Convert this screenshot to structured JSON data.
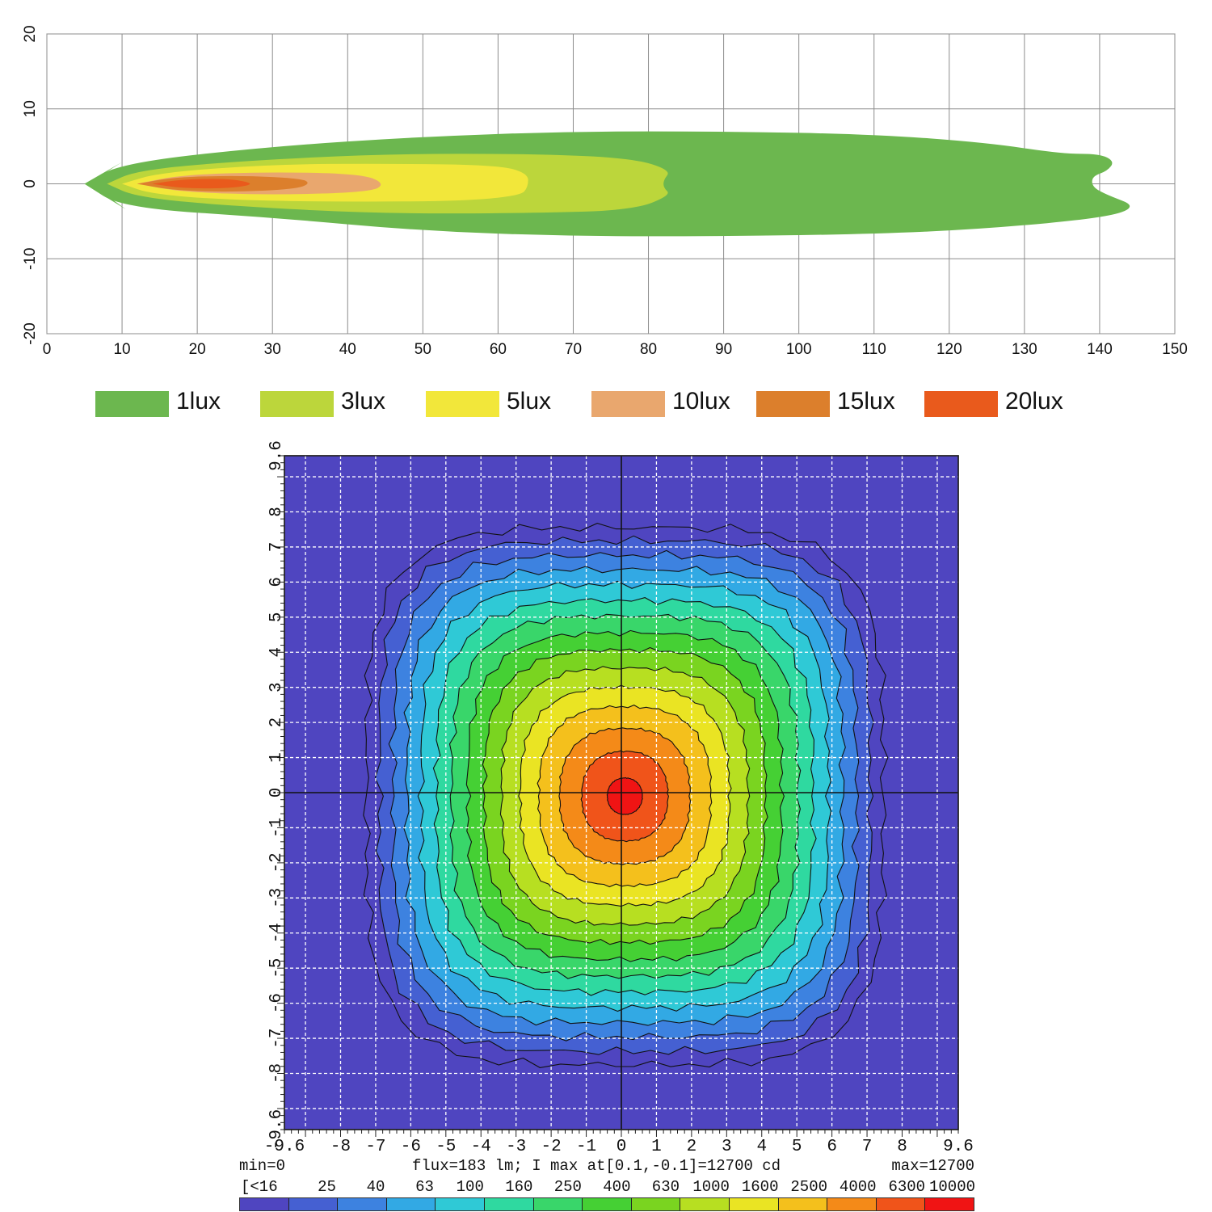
{
  "chart_data": [
    {
      "type": "area",
      "description_kind": "isolux contour plot",
      "title": "",
      "xlabel": "",
      "ylabel": "",
      "xlim": [
        0,
        150
      ],
      "ylim": [
        -20,
        20
      ],
      "xticks": [
        0,
        10,
        20,
        30,
        40,
        50,
        60,
        70,
        80,
        90,
        100,
        110,
        120,
        130,
        140,
        150
      ],
      "yticks": [
        20,
        10,
        0,
        -10,
        -20
      ],
      "grid": true,
      "legend_position": "bottom",
      "series": [
        {
          "name": "1lux",
          "color": "#6cb74f",
          "points": [
            [
              5,
              0
            ],
            [
              10,
              2.8
            ],
            [
              30,
              5
            ],
            [
              50,
              6.3
            ],
            [
              70,
              7
            ],
            [
              90,
              7
            ],
            [
              110,
              6.6
            ],
            [
              125,
              5.5
            ],
            [
              135,
              4
            ],
            [
              140,
              4
            ],
            [
              142,
              3
            ],
            [
              141,
              1.7
            ],
            [
              139,
              1
            ],
            [
              139,
              -0.4
            ],
            [
              141,
              -1.5
            ],
            [
              145,
              -3
            ],
            [
              141,
              -4.5
            ],
            [
              125,
              -6
            ],
            [
              110,
              -6.7
            ],
            [
              90,
              -7
            ],
            [
              70,
              -7
            ],
            [
              50,
              -6.3
            ],
            [
              30,
              -4.5
            ],
            [
              10,
              -3.2
            ],
            [
              5,
              0
            ]
          ]
        },
        {
          "name": "3lux",
          "color": "#bcd63b",
          "points": [
            [
              8,
              0
            ],
            [
              12,
              1.8
            ],
            [
              25,
              3
            ],
            [
              45,
              4
            ],
            [
              65,
              4
            ],
            [
              78,
              3.4
            ],
            [
              83,
              1.8
            ],
            [
              82,
              0.5
            ],
            [
              82,
              -0.5
            ],
            [
              83,
              -1.5
            ],
            [
              78,
              -3.5
            ],
            [
              65,
              -3.9
            ],
            [
              45,
              -4
            ],
            [
              25,
              -3
            ],
            [
              12,
              -1.8
            ],
            [
              8,
              0
            ]
          ]
        },
        {
          "name": "5lux",
          "color": "#f2e73a",
          "points": [
            [
              10,
              0
            ],
            [
              15,
              1.5
            ],
            [
              30,
              2.6
            ],
            [
              45,
              2.7
            ],
            [
              60,
              2.5
            ],
            [
              64,
              1.4
            ],
            [
              64,
              -0.4
            ],
            [
              63,
              -1.6
            ],
            [
              55,
              -2.3
            ],
            [
              40,
              -2.4
            ],
            [
              25,
              -2.2
            ],
            [
              14,
              -1.4
            ],
            [
              10,
              0
            ]
          ]
        },
        {
          "name": "10lux",
          "color": "#e9a76e",
          "points": [
            [
              12,
              0
            ],
            [
              18,
              1.2
            ],
            [
              30,
              1.6
            ],
            [
              42,
              1.3
            ],
            [
              45,
              0
            ],
            [
              43,
              -1.1
            ],
            [
              30,
              -1.5
            ],
            [
              18,
              -1.1
            ],
            [
              12,
              0
            ]
          ]
        },
        {
          "name": "15lux",
          "color": "#dc7f2c",
          "points": [
            [
              12,
              0
            ],
            [
              17,
              0.9
            ],
            [
              26,
              1.1
            ],
            [
              34,
              0.7
            ],
            [
              35,
              0
            ],
            [
              33,
              -0.7
            ],
            [
              25,
              -1.1
            ],
            [
              17,
              -0.9
            ],
            [
              12,
              0
            ]
          ]
        },
        {
          "name": "20lux",
          "color": "#e95a1c",
          "points": [
            [
              14,
              0
            ],
            [
              18,
              0.6
            ],
            [
              24,
              0.7
            ],
            [
              27,
              0.2
            ],
            [
              27,
              -0.2
            ],
            [
              24,
              -0.6
            ],
            [
              18,
              -0.6
            ],
            [
              14,
              0
            ]
          ]
        }
      ]
    },
    {
      "type": "heatmap",
      "title": "",
      "xlim": [
        -9.6,
        9.6
      ],
      "ylim": [
        -9.6,
        9.6
      ],
      "xticks": [
        "-9.6",
        "-8",
        "-7",
        "-6",
        "-5",
        "-4",
        "-3",
        "-2",
        "-1",
        "0",
        "1",
        "2",
        "3",
        "4",
        "5",
        "6",
        "7",
        "8",
        "9.6"
      ],
      "yticks": [
        "9.6",
        "8",
        "7",
        "6",
        "5",
        "4",
        "3",
        "2",
        "1",
        "0",
        "-1",
        "-2",
        "-3",
        "-4",
        "-5",
        "-6",
        "-7",
        "-8",
        "-9.6"
      ],
      "grid": true,
      "crosshair_at": [
        0,
        0
      ],
      "peak_location": [
        0.1,
        -0.1
      ],
      "peak_value": 12700,
      "levels": [
        16,
        25,
        40,
        63,
        100,
        160,
        250,
        400,
        630,
        1000,
        1600,
        2500,
        4000,
        6300,
        10000
      ],
      "min_text": "min=0",
      "flux_text": "flux=183 lm; I max at[0.1,-0.1]=12700 cd",
      "max_text": "max=12700",
      "scale_labels": [
        "[<16",
        "25",
        "40",
        "63",
        "100",
        "160",
        "250",
        "400",
        "630",
        "1000",
        "1600",
        "2500",
        "4000",
        "6300",
        "10000"
      ],
      "scale_colors": [
        "#4f45c0",
        "#4560d2",
        "#3d82e0",
        "#32a9e4",
        "#2fc9d6",
        "#2fd9a0",
        "#39d66a",
        "#45d034",
        "#7ad420",
        "#b7df21",
        "#eae423",
        "#f4c01c",
        "#f48a18",
        "#f0541a",
        "#f01414"
      ],
      "background_color": "#4f45c0"
    }
  ]
}
